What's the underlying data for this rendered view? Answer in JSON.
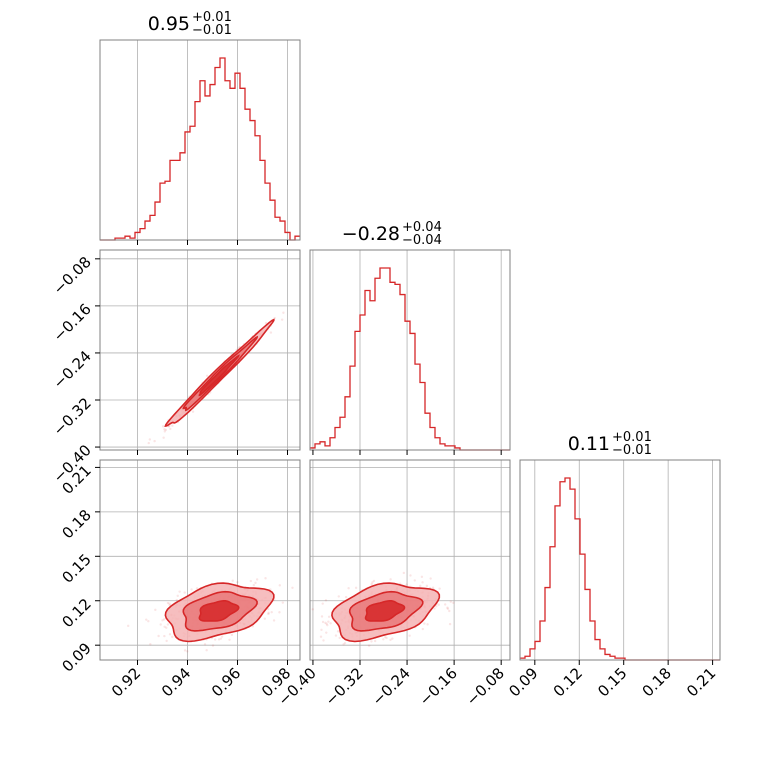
{
  "chart_data": {
    "type": "corner",
    "color": "#d62728",
    "fill_light": "#f4b3b4",
    "fill_mid": "#e87476",
    "grid": true,
    "parameters": [
      {
        "median": "0.95",
        "plus": "+0.01",
        "minus": "−0.01",
        "range": [
          0.905,
          0.985
        ],
        "ticks": [
          0.92,
          0.94,
          0.96,
          0.98
        ],
        "tick_labels": [
          "0.92",
          "0.94",
          "0.96",
          "0.98"
        ]
      },
      {
        "median": "−0.28",
        "plus": "+0.04",
        "minus": "−0.04",
        "range": [
          -0.405,
          -0.065
        ],
        "ticks": [
          -0.4,
          -0.32,
          -0.24,
          -0.16,
          -0.08
        ],
        "tick_labels": [
          "−0.40",
          "−0.32",
          "−0.24",
          "−0.16",
          "−0.08"
        ]
      },
      {
        "median": "0.11",
        "plus": "+0.01",
        "minus": "−0.01",
        "range": [
          0.08,
          0.215
        ],
        "ticks": [
          0.09,
          0.12,
          0.15,
          0.18,
          0.21
        ],
        "tick_labels": [
          "0.09",
          "0.12",
          "0.15",
          "0.18",
          "0.21"
        ]
      }
    ],
    "histograms": [
      [
        0,
        0,
        0,
        1,
        1,
        2,
        1,
        4,
        6,
        10,
        13,
        20,
        30,
        31,
        42,
        42,
        46,
        57,
        60,
        73,
        84,
        76,
        82,
        91,
        96,
        84,
        80,
        88,
        80,
        69,
        63,
        55,
        42,
        30,
        21,
        12,
        10,
        4,
        0,
        2
      ],
      [
        1,
        3,
        4,
        2,
        6,
        11,
        16,
        26,
        41,
        58,
        66,
        78,
        73,
        84,
        89,
        89,
        82,
        81,
        76,
        63,
        57,
        42,
        33,
        18,
        11,
        6,
        3,
        2,
        2,
        1,
        0,
        0,
        0,
        0,
        0,
        0,
        0,
        0,
        0,
        0
      ],
      [
        1,
        2,
        6,
        10,
        21,
        39,
        61,
        83,
        96,
        98,
        92,
        76,
        57,
        38,
        21,
        11,
        6,
        3,
        2,
        1,
        1,
        0,
        0,
        0,
        0,
        0,
        0,
        0,
        0,
        0,
        0,
        0,
        0,
        0,
        0,
        0,
        0,
        0,
        0,
        0
      ]
    ],
    "correlations": {
      "p0_p1": 0.99,
      "p0_p2": 0.35,
      "p1_p2": 0.35
    }
  }
}
